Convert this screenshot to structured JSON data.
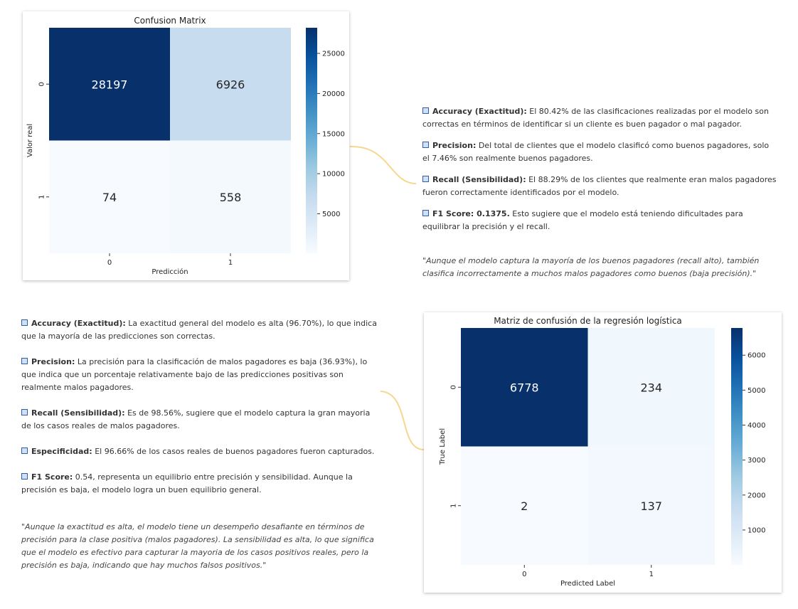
{
  "colors": {
    "connector": "#f7d78e",
    "cmap_dark": "#08306b",
    "cmap_light": "#f7fbff",
    "bullet": "#2e5fa6"
  },
  "chart_data": [
    {
      "type": "heatmap",
      "title": "Confusion Matrix",
      "xlabel": "Predicción",
      "ylabel": "Valor real",
      "x_categories": [
        "0",
        "1"
      ],
      "y_categories": [
        "0",
        "1"
      ],
      "values": [
        [
          28197,
          6926
        ],
        [
          74,
          558
        ]
      ],
      "colorbar": {
        "min": 74,
        "max": 28197,
        "ticks": [
          5000,
          10000,
          15000,
          20000,
          25000
        ]
      },
      "colormap": "Blues"
    },
    {
      "type": "heatmap",
      "title": "Matriz de confusión de la regresión logística",
      "xlabel": "Predicted Label",
      "ylabel": "True Label",
      "x_categories": [
        "0",
        "1"
      ],
      "y_categories": [
        "0",
        "1"
      ],
      "values": [
        [
          6778,
          234
        ],
        [
          2,
          137
        ]
      ],
      "colorbar": {
        "min": 2,
        "max": 6778,
        "ticks": [
          1000,
          2000,
          3000,
          4000,
          5000,
          6000
        ]
      },
      "colormap": "Blues"
    }
  ],
  "text1": {
    "items": [
      {
        "label": "Accuracy (Exactitud):",
        "text": " El 80.42% de las clasificaciones realizadas por el modelo son correctas en términos de identificar si un cliente es buen pagador o mal pagador."
      },
      {
        "label": "Precision:",
        "text": " Del total de clientes que el modelo clasificó como buenos pagadores, solo el 7.46% son realmente buenos pagadores."
      },
      {
        "label": "Recall (Sensibilidad):",
        "text": " El 88.29% de los clientes que realmente eran malos pagadores fueron correctamente identificados por el modelo."
      },
      {
        "label": "F1 Score:",
        "bold_value": " 0.1375.",
        "text": " Esto sugiere que el modelo está teniendo dificultades para equilibrar la precisión y el recall."
      }
    ],
    "quote": "\"Aunque el modelo captura la mayoría de los buenos pagadores (recall alto), también clasifica incorrectamente a muchos malos pagadores como buenos (baja precisión).\""
  },
  "text2": {
    "items": [
      {
        "label": "Accuracy (Exactitud):",
        "text": " La exactitud general del modelo es alta (96.70%), lo que indica que la mayoría de las predicciones son correctas."
      },
      {
        "label": "Precision:",
        "text": " La precisión para la clasificación de malos pagadores es baja (36.93%), lo que indica que un porcentaje relativamente bajo de las predicciones positivas son realmente malos pagadores."
      },
      {
        "label": "Recall (Sensibilidad):",
        "text": " Es de 98.56%, sugiere que el modelo captura la gran mayoria de los casos reales de malos pagadores."
      },
      {
        "label": "Especificidad:",
        "text": " El 96.66% de los casos reales de buenos pagadores fueron capturados."
      },
      {
        "label": "F1 Score:",
        "text": " 0.54, representa un equilibrio entre precisión y sensibilidad. Aunque la precisión es baja, el modelo logra un buen equilibrio general."
      }
    ],
    "quote": "\"Aunque la exactitud es alta, el modelo tiene un desempeño desafiante en términos de precisión para la clase positiva (malos pagadores). La sensibilidad es alta, lo que significa que el modelo es efectivo para capturar la mayoria de los casos positivos reales, pero la precisión es baja, indicando que hay muchos falsos positivos.\""
  }
}
